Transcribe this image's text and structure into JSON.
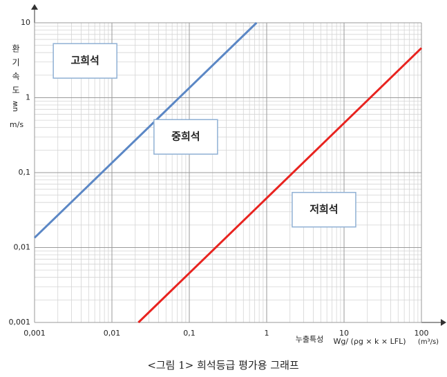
{
  "chart_data": {
    "type": "line",
    "caption": "<그림 1> 희석등급 평가용 그래프",
    "y_label": "환기속도",
    "y_label_symbol": "uw",
    "y_label_unit": "m/s",
    "x_label_name": "누출특성",
    "x_label": "Wg/ (ρg × k × LFL)",
    "x_label_unit": "(m³/s)",
    "x_scale": "log",
    "y_scale": "log",
    "grid": true,
    "minor_grid": [
      2,
      3,
      4,
      5,
      6,
      7,
      8,
      9
    ],
    "xlim": [
      0.001,
      100
    ],
    "xticks": [
      {
        "value": 0.001,
        "label": "0,001"
      },
      {
        "value": 0.01,
        "label": "0,01"
      },
      {
        "value": 0.1,
        "label": "0,1"
      },
      1,
      10,
      100
    ],
    "ylim": [
      0.001,
      10
    ],
    "yticks": [
      {
        "value": 0.001,
        "label": "0,001"
      },
      {
        "value": 0.01,
        "label": "0,01"
      },
      {
        "value": 0.1,
        "label": "0,1"
      },
      1,
      10
    ],
    "series": [
      {
        "color": "#5b87c5",
        "x": [
          0.001,
          0.74
        ],
        "values": [
          0.0135,
          10
        ]
      },
      {
        "color": "#e8231f",
        "x": [
          0.022,
          100
        ],
        "values": [
          0.001,
          4.6
        ]
      }
    ],
    "annotations": [
      {
        "text": "고희석",
        "x": 0.0045,
        "y": 3.1
      },
      {
        "text": "중희석",
        "x": 0.09,
        "y": 0.3
      },
      {
        "text": "저희석",
        "x": 5.5,
        "y": 0.032
      }
    ]
  }
}
